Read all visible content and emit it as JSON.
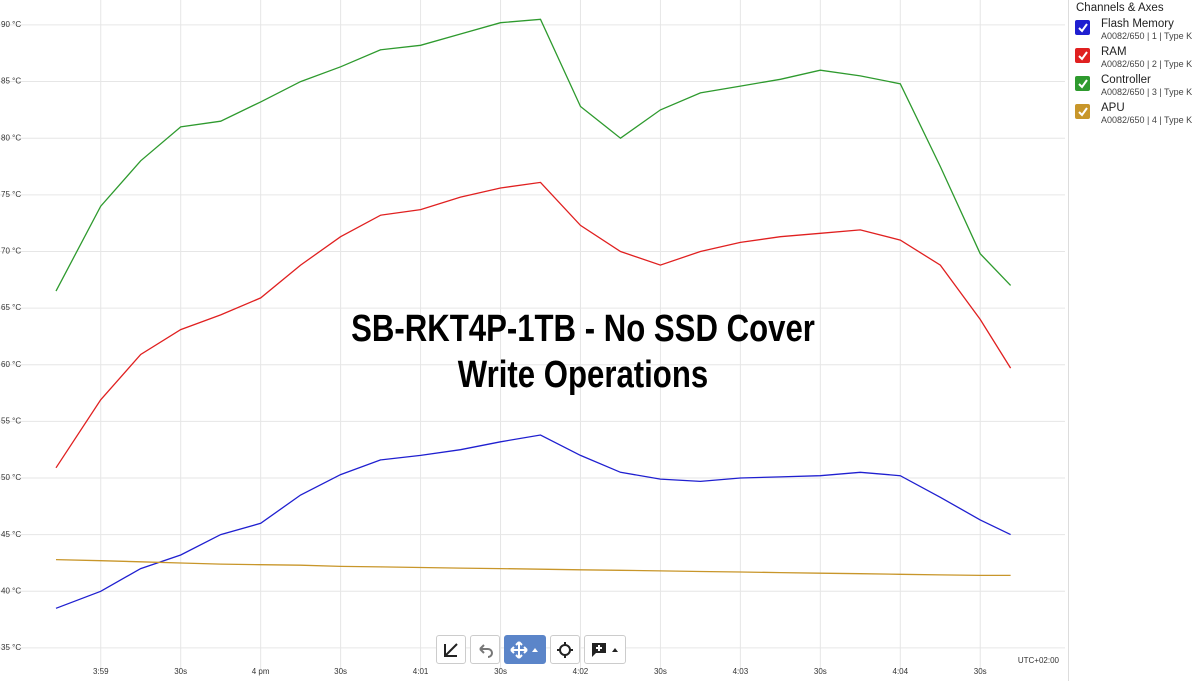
{
  "chart_data": {
    "type": "line",
    "title": "SB-RKT4P-1TB - No SSD Cover",
    "subtitle": "Write Operations",
    "timezone_label": "UTC+02:00",
    "x": [
      58.72,
      59,
      59.25,
      59.5,
      59.75,
      60,
      60.25,
      60.5,
      60.75,
      61,
      61.25,
      61.5,
      61.75,
      62,
      62.25,
      62.5,
      62.75,
      63,
      63.25,
      63.5,
      63.75,
      64,
      64.25,
      64.5,
      64.69
    ],
    "xlim": [
      58.37,
      65.03
    ],
    "xticks": [
      {
        "value": 59,
        "label": "3:59"
      },
      {
        "value": 59.5,
        "label": "30s"
      },
      {
        "value": 60,
        "label": "4 pm"
      },
      {
        "value": 60.5,
        "label": "30s"
      },
      {
        "value": 61,
        "label": "4:01"
      },
      {
        "value": 61.5,
        "label": "30s"
      },
      {
        "value": 62,
        "label": "4:02"
      },
      {
        "value": 62.5,
        "label": "30s"
      },
      {
        "value": 63,
        "label": "4:03"
      },
      {
        "value": 63.5,
        "label": "30s"
      },
      {
        "value": 64,
        "label": "4:04"
      },
      {
        "value": 64.5,
        "label": "30s"
      }
    ],
    "ylim": [
      33.05,
      92.2
    ],
    "yticks": [
      {
        "value": 35,
        "label": "35 °C"
      },
      {
        "value": 40,
        "label": "40 °C"
      },
      {
        "value": 45,
        "label": "45 °C"
      },
      {
        "value": 50,
        "label": "50 °C"
      },
      {
        "value": 55,
        "label": "55 °C"
      },
      {
        "value": 60,
        "label": "60 °C"
      },
      {
        "value": 65,
        "label": "65 °C"
      },
      {
        "value": 70,
        "label": "70 °C"
      },
      {
        "value": 75,
        "label": "75 °C"
      },
      {
        "value": 80,
        "label": "80 °C"
      },
      {
        "value": 85,
        "label": "85 °C"
      },
      {
        "value": 90,
        "label": "90 °C"
      }
    ],
    "grid": true,
    "legend_title": "Channels & Axes",
    "series": [
      {
        "name": "Flash Memory",
        "detail": "A0082/650 | 1 | Type K",
        "color": "#1f1fd0",
        "values": [
          38.5,
          40,
          42,
          43.2,
          45,
          46,
          48.5,
          50.3,
          51.6,
          52,
          52.5,
          53.2,
          53.8,
          52,
          50.5,
          49.9,
          49.7,
          50,
          50.1,
          50.2,
          50.5,
          50.2,
          48.3,
          46.3,
          45
        ]
      },
      {
        "name": "RAM",
        "detail": "A0082/650 | 2 | Type K",
        "color": "#e02020",
        "values": [
          50.9,
          56.9,
          60.9,
          63.1,
          64.4,
          65.9,
          68.8,
          71.3,
          73.2,
          73.7,
          74.8,
          75.6,
          76.1,
          72.3,
          70,
          68.8,
          70,
          70.8,
          71.3,
          71.6,
          71.9,
          71,
          68.8,
          64,
          59.7
        ]
      },
      {
        "name": "Controller",
        "detail": "A0082/650 | 3 | Type K",
        "color": "#2e9a2e",
        "values": [
          66.5,
          74,
          78,
          81,
          81.5,
          83.2,
          85,
          86.3,
          87.8,
          88.2,
          89.2,
          90.2,
          90.5,
          82.8,
          80,
          82.5,
          84,
          84.6,
          85.2,
          86,
          85.5,
          84.8,
          77.5,
          69.8,
          67
        ]
      },
      {
        "name": "APU",
        "detail": "A0082/650 | 4 | Type K",
        "color": "#c8962a",
        "values": [
          42.8,
          42.7,
          42.6,
          42.5,
          42.4,
          42.35,
          42.3,
          42.2,
          42.15,
          42.1,
          42.05,
          42,
          41.95,
          41.9,
          41.85,
          41.8,
          41.75,
          41.7,
          41.65,
          41.6,
          41.55,
          41.5,
          41.45,
          41.4,
          41.4
        ]
      }
    ]
  }
}
